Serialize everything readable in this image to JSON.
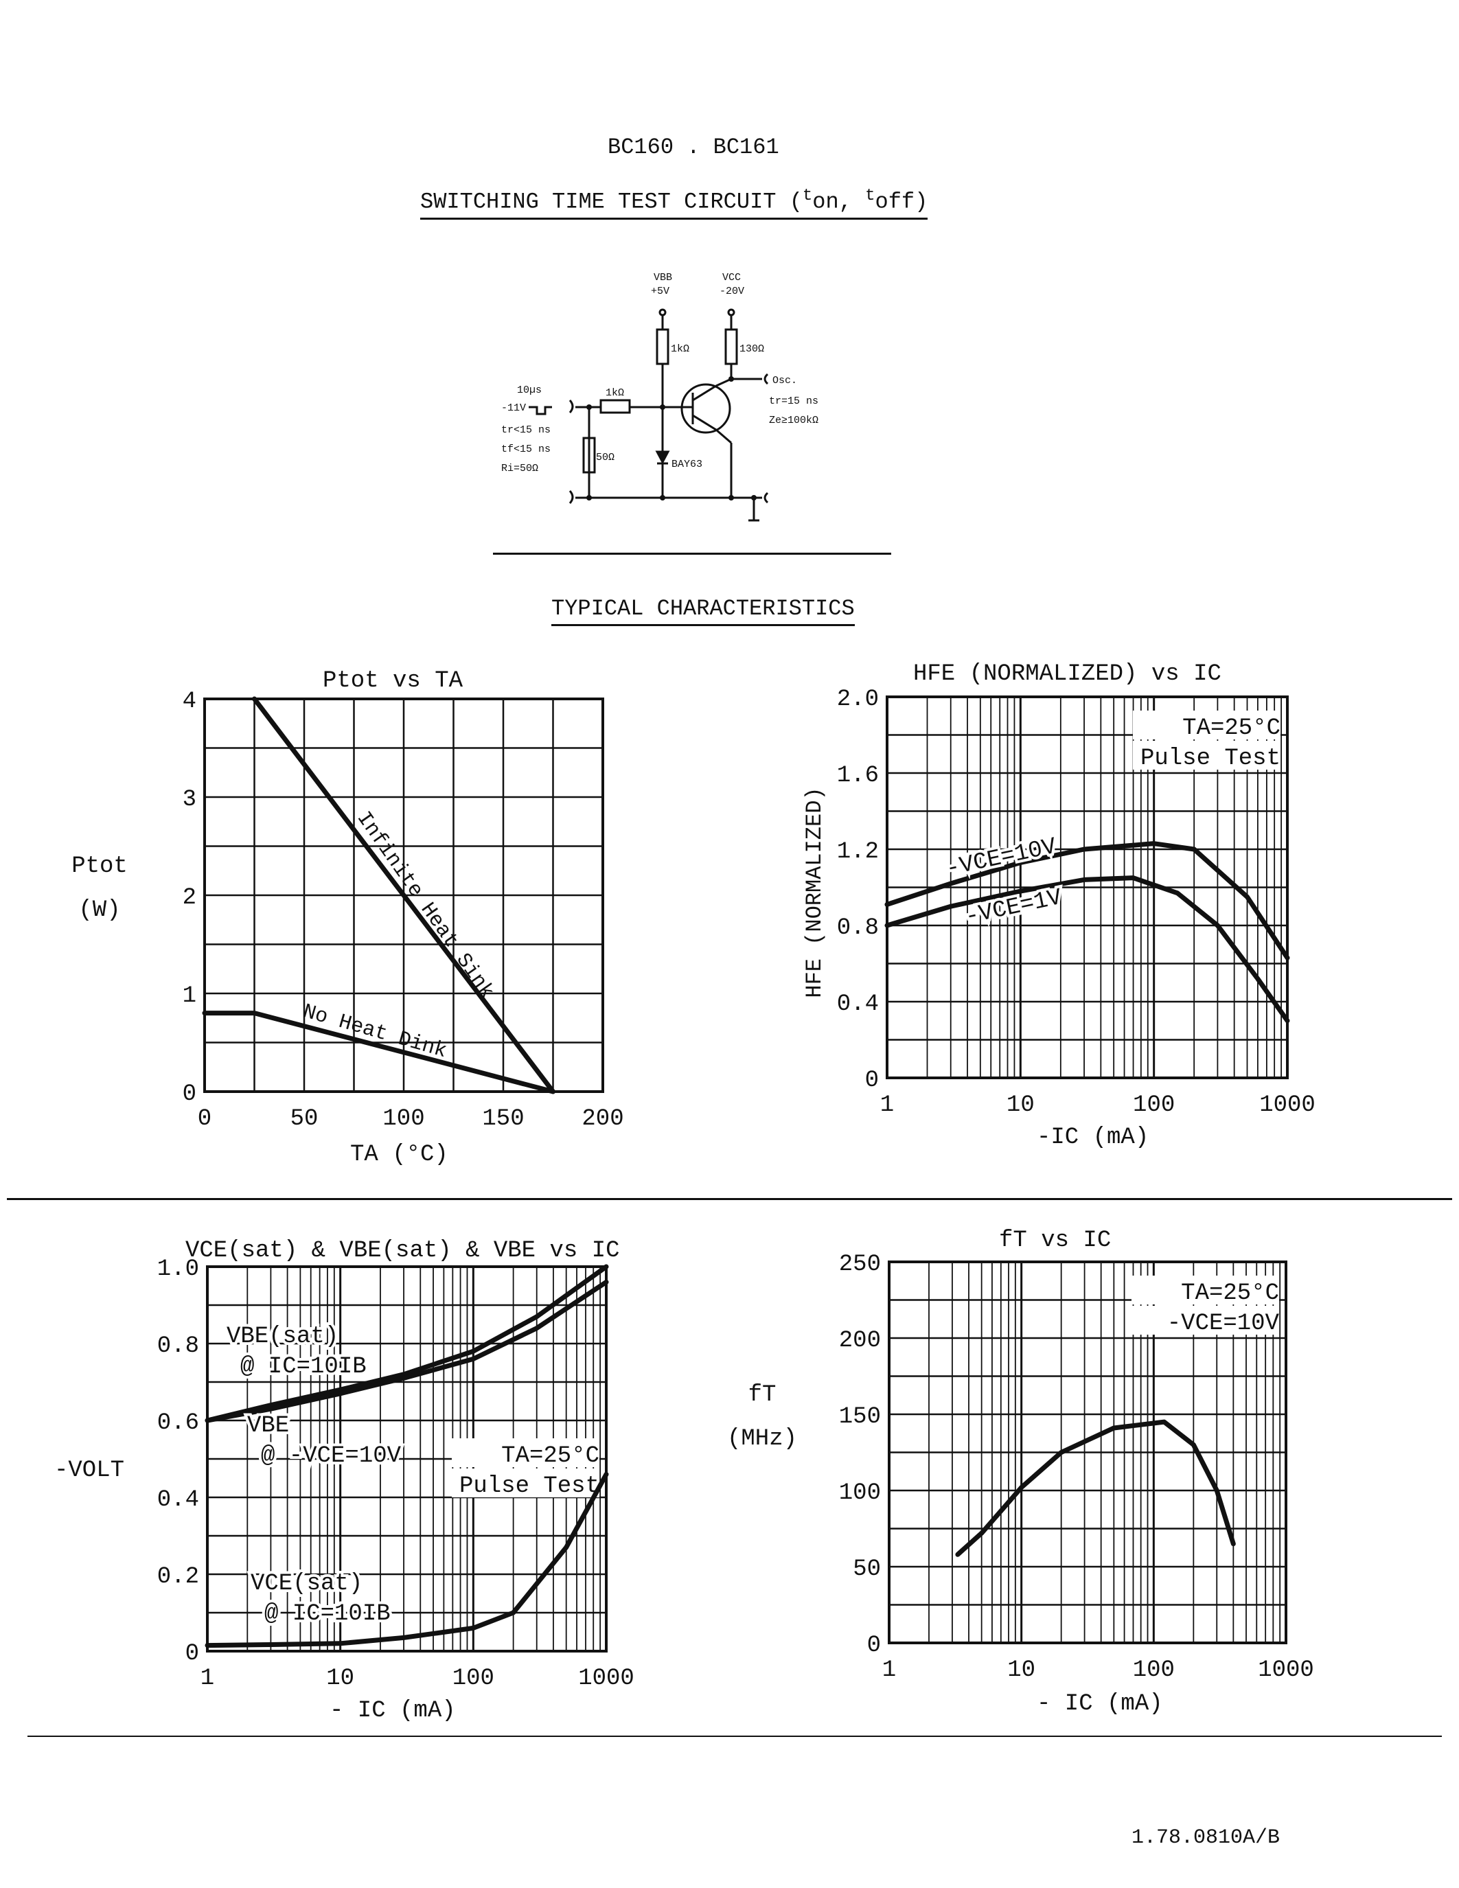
{
  "header": {
    "part_numbers": "BC160 . BC161",
    "section_title": "SWITCHING TIME TEST CIRCUIT (ton, toff)",
    "section_title_main": "SWITCHING TIME TEST CIRCUIT (",
    "t_on": "on",
    "t_off": "off"
  },
  "circuit": {
    "vbb_label": "VBB",
    "vbb_value": "+5V",
    "vcc_label": "VCC",
    "vcc_value": "-20V",
    "r_base_supply": "1kΩ",
    "r_collector": "130Ω",
    "r_series": "1kΩ",
    "r_shunt": "50Ω",
    "diode": "BAY63",
    "pulse_width": "10µs",
    "pulse_amplitude": "-11V",
    "tr": "tr<15 ns",
    "tf": "tf<15 ns",
    "ri": "Ri=50Ω",
    "osc": "Osc.",
    "osc_tr": "tr=15 ns",
    "osc_ze": "Ze≥100kΩ"
  },
  "typical_title": "TYPICAL CHARACTERISTICS",
  "footer": {
    "doc_number": "1.78.0810A/B"
  },
  "chart_data": [
    {
      "type": "line",
      "title": "Ptot vs TA",
      "xlabel": "TA (°C)",
      "ylabel": "Ptot (W)",
      "xlim": [
        0,
        200
      ],
      "ylim": [
        0,
        4
      ],
      "xticks": [
        "0",
        "50",
        "100",
        "150",
        "200"
      ],
      "yticks": [
        "0",
        "1",
        "2",
        "3",
        "4"
      ],
      "grid": true,
      "series": [
        {
          "name": "Infinite Heat Sink",
          "x": [
            25,
            175
          ],
          "y": [
            4.0,
            0.0
          ]
        },
        {
          "name": "No Heat Dink",
          "x": [
            0,
            25,
            175
          ],
          "y": [
            0.8,
            0.8,
            0.0
          ]
        }
      ]
    },
    {
      "type": "line",
      "title": "HFE (NORMALIZED) vs IC",
      "xlabel": "-IC (mA)",
      "ylabel": "HFE (NORMALIZED)",
      "xscale": "log",
      "xlim": [
        1,
        1000
      ],
      "ylim": [
        0,
        2.0
      ],
      "xticks": [
        "1",
        "10",
        "100",
        "1000"
      ],
      "yticks": [
        "0",
        "0.4",
        "0.8",
        "1.2",
        "1.6",
        "2.0"
      ],
      "annotations": [
        "TA=25°C",
        "Pulse Test"
      ],
      "grid": true,
      "series": [
        {
          "name": "-VCE=10V",
          "x": [
            1,
            3,
            10,
            30,
            100,
            200,
            500,
            1000
          ],
          "y": [
            0.91,
            1.02,
            1.13,
            1.2,
            1.23,
            1.2,
            0.95,
            0.63
          ]
        },
        {
          "name": "-VCE=1V",
          "x": [
            1,
            3,
            10,
            30,
            70,
            150,
            300,
            600,
            1000
          ],
          "y": [
            0.8,
            0.9,
            0.98,
            1.04,
            1.05,
            0.97,
            0.8,
            0.52,
            0.3
          ]
        }
      ]
    },
    {
      "type": "line",
      "title": "VCE(sat) & VBE(sat) & VBE vs IC",
      "xlabel": "- IC (mA)",
      "ylabel": "-VOLT",
      "xscale": "log",
      "xlim": [
        1,
        1000
      ],
      "ylim": [
        0,
        1.0
      ],
      "xticks": [
        "1",
        "10",
        "100",
        "1000"
      ],
      "yticks": [
        "0",
        "0.2",
        "0.4",
        "0.6",
        "0.8",
        "1.0"
      ],
      "annotations": [
        "TA=25°C",
        "Pulse Test"
      ],
      "grid": true,
      "series": [
        {
          "name": "VBE(sat) @ IC=10IB",
          "x": [
            1,
            3,
            10,
            30,
            100,
            300,
            1000
          ],
          "y": [
            0.6,
            0.64,
            0.68,
            0.72,
            0.78,
            0.87,
            1.0
          ]
        },
        {
          "name": "VBE @ -VCE=10V",
          "x": [
            1,
            3,
            10,
            30,
            100,
            300,
            1000
          ],
          "y": [
            0.6,
            0.63,
            0.67,
            0.71,
            0.76,
            0.84,
            0.96
          ]
        },
        {
          "name": "VCE(sat) @ IC=10IB",
          "x": [
            1,
            3,
            10,
            30,
            100,
            200,
            500,
            1000
          ],
          "y": [
            0.015,
            0.017,
            0.02,
            0.035,
            0.06,
            0.1,
            0.27,
            0.46
          ]
        }
      ]
    },
    {
      "type": "line",
      "title": "fT vs IC",
      "xlabel": "- IC (mA)",
      "ylabel": "fT (MHz)",
      "xscale": "log",
      "xlim": [
        1,
        1000
      ],
      "ylim": [
        0,
        250
      ],
      "xticks": [
        "1",
        "10",
        "100",
        "1000"
      ],
      "yticks": [
        "0",
        "50",
        "100",
        "150",
        "200",
        "250"
      ],
      "annotations": [
        "TA=25°C",
        "-VCE=10V"
      ],
      "grid": true,
      "series": [
        {
          "name": "-VCE=10V",
          "x": [
            3.3,
            5,
            10,
            20,
            50,
            120,
            200,
            300,
            400
          ],
          "y": [
            58,
            72,
            102,
            125,
            141,
            145,
            130,
            100,
            65
          ]
        }
      ]
    }
  ]
}
